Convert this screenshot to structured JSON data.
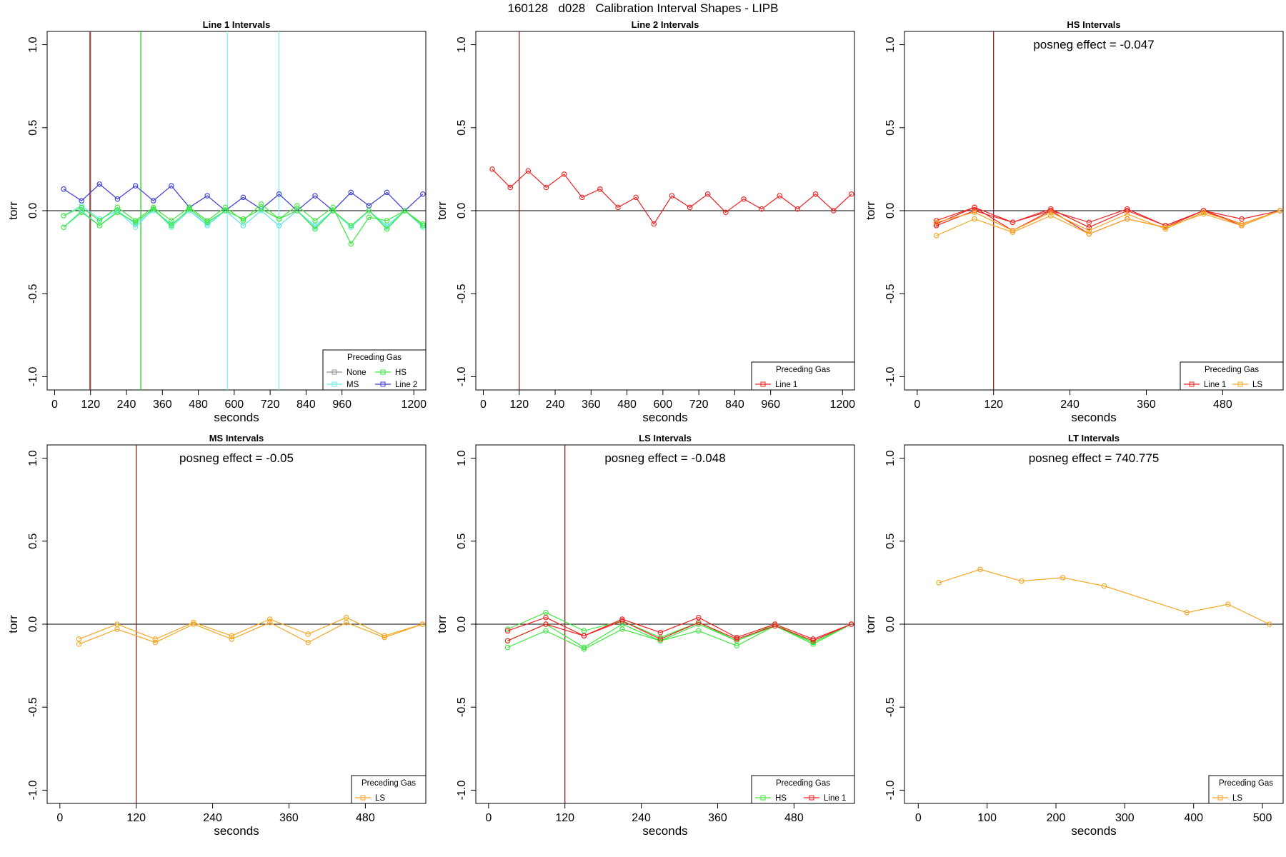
{
  "figure_title": "160128   d028   Calibration Interval Shapes - LIPB",
  "chart_data": [
    {
      "type": "line",
      "title": "Line 1 Intervals",
      "xlabel": "seconds",
      "ylabel": "torr",
      "xlim": [
        -25,
        1240
      ],
      "ylim": [
        -1.08,
        1.08
      ],
      "xticks": [
        0,
        120,
        240,
        360,
        480,
        600,
        720,
        840,
        960,
        1200
      ],
      "yticks": [
        1.0,
        0.5,
        0.0,
        -0.5,
        -1.0
      ],
      "ytick_labels": [
        "1.0",
        "0.5",
        "0.0",
        "-0.5",
        "-1.0"
      ],
      "hline": 0.0,
      "vlines": [
        {
          "x": 118,
          "color": "#7e1f6e"
        },
        {
          "x": 120,
          "color": "#a0522d"
        },
        {
          "x": 288,
          "color": "#22cc22"
        },
        {
          "x": 577,
          "color": "#7ff2f2"
        },
        {
          "x": 749,
          "color": "#7ff2f2"
        }
      ],
      "legend": {
        "title": "Preceding Gas",
        "position": "bottom-right",
        "columns": 2,
        "entries": [
          {
            "label": "None",
            "color": "#909090"
          },
          {
            "label": "HS",
            "color": "#3ee83e"
          },
          {
            "label": "MS",
            "color": "#66e8e8"
          },
          {
            "label": "Line 2",
            "color": "#3a3ad6"
          }
        ]
      },
      "series": [
        {
          "name": "Line 2",
          "color": "#3a3ad6",
          "x": [
            30,
            90,
            150,
            210,
            270,
            330,
            390,
            450,
            510,
            570,
            630,
            690,
            750,
            810,
            870,
            930,
            990,
            1050,
            1110,
            1170,
            1230
          ],
          "y": [
            0.13,
            0.06,
            0.16,
            0.07,
            0.15,
            0.06,
            0.15,
            0.02,
            0.09,
            0.0,
            0.08,
            0.01,
            0.1,
            0.0,
            0.09,
            0.0,
            0.11,
            0.03,
            0.11,
            0.0,
            0.1
          ]
        },
        {
          "name": "MS",
          "color": "#66e8e8",
          "x": [
            30,
            90,
            150,
            210,
            270,
            330,
            390,
            450,
            510,
            570,
            630,
            690,
            750,
            810,
            870,
            930,
            990,
            1050,
            1110,
            1170,
            1230
          ],
          "y": [
            -0.03,
            0.03,
            -0.05,
            0.0,
            -0.1,
            0.01,
            -0.1,
            0.0,
            -0.08,
            0.0,
            -0.09,
            0.0,
            -0.09,
            0.0,
            -0.09,
            0.0,
            -0.1,
            0.0,
            -0.09,
            0.0,
            -0.09
          ]
        },
        {
          "name": "MS",
          "color": "#66e8e8",
          "x": [
            30,
            90,
            150,
            210,
            270,
            330,
            390,
            450,
            510,
            570,
            630,
            690,
            750,
            810,
            870,
            930,
            990,
            1050,
            1110,
            1170,
            1230
          ],
          "y": [
            -0.1,
            0.0,
            -0.09,
            0.0,
            -0.08,
            0.0,
            -0.08,
            0.0,
            -0.09,
            0.0,
            -0.09,
            0.0,
            -0.09,
            0.0,
            -0.1,
            0.0,
            -0.1,
            0.0,
            -0.1,
            0.0,
            -0.1
          ]
        },
        {
          "name": "HS",
          "color": "#3ee83e",
          "x": [
            30,
            90,
            150,
            210,
            270,
            330,
            390,
            450,
            510,
            570,
            630,
            690,
            750,
            810,
            870,
            930,
            990,
            1050,
            1110,
            1170,
            1230
          ],
          "y": [
            -0.03,
            0.02,
            -0.06,
            0.02,
            -0.06,
            0.02,
            -0.06,
            0.02,
            -0.06,
            0.02,
            -0.06,
            0.04,
            -0.05,
            0.03,
            -0.06,
            0.02,
            -0.2,
            -0.04,
            -0.06,
            0.0,
            -0.08
          ]
        },
        {
          "name": "HS",
          "color": "#3ee83e",
          "x": [
            30,
            90,
            150,
            210,
            270,
            330,
            390,
            450,
            510,
            570,
            630,
            690,
            750,
            810,
            870,
            930,
            990,
            1050,
            1110,
            1170,
            1230
          ],
          "y": [
            -0.1,
            -0.01,
            -0.09,
            -0.01,
            -0.07,
            0.01,
            -0.09,
            0.01,
            -0.07,
            0.0,
            -0.05,
            0.01,
            -0.05,
            0.0,
            -0.11,
            0.0,
            -0.09,
            0.0,
            -0.11,
            0.0,
            -0.09
          ]
        }
      ]
    },
    {
      "type": "line",
      "title": "Line 2 Intervals",
      "xlabel": "seconds",
      "ylabel": "torr",
      "xlim": [
        -25,
        1240
      ],
      "ylim": [
        -1.08,
        1.08
      ],
      "xticks": [
        0,
        120,
        240,
        360,
        480,
        600,
        720,
        840,
        960,
        1200
      ],
      "yticks": [
        1.0,
        0.5,
        0.0,
        -0.5,
        -1.0
      ],
      "ytick_labels": [
        "1.0",
        "0.5",
        "0.0",
        "-0.5",
        "-1.0"
      ],
      "hline": 0.0,
      "vlines": [
        {
          "x": 120,
          "color": "#8b2323"
        }
      ],
      "legend": {
        "title": "Preceding Gas",
        "position": "bottom-right",
        "columns": 1,
        "entries": [
          {
            "label": "Line 1",
            "color": "#ee2222"
          }
        ]
      },
      "series": [
        {
          "name": "Line 1",
          "color": "#ee2222",
          "x": [
            30,
            90,
            150,
            210,
            270,
            330,
            390,
            450,
            510,
            570,
            630,
            690,
            750,
            810,
            870,
            930,
            990,
            1050,
            1110,
            1170,
            1230
          ],
          "y": [
            0.25,
            0.14,
            0.24,
            0.14,
            0.22,
            0.08,
            0.13,
            0.02,
            0.08,
            -0.08,
            0.09,
            0.02,
            0.1,
            -0.01,
            0.07,
            0.01,
            0.09,
            0.01,
            0.1,
            0.0,
            0.1
          ]
        }
      ]
    },
    {
      "type": "line",
      "title": "HS Intervals",
      "annotation": "posneg effect = -0.047",
      "xlabel": "seconds",
      "ylabel": "torr",
      "xlim": [
        -20,
        575
      ],
      "ylim": [
        -1.08,
        1.08
      ],
      "xticks": [
        0,
        120,
        240,
        360,
        480
      ],
      "yticks": [
        1.0,
        0.5,
        0.0,
        -0.5,
        -1.0
      ],
      "ytick_labels": [
        "1.0",
        "0.5",
        "0.0",
        "-0.5",
        "-1.0"
      ],
      "hline": 0.0,
      "vlines": [
        {
          "x": 120,
          "color": "#8b2323"
        }
      ],
      "legend": {
        "title": "Preceding Gas",
        "position": "bottom-right",
        "columns": 2,
        "entries": [
          {
            "label": "Line 1",
            "color": "#ee2222"
          },
          {
            "label": "LS",
            "color": "#f5a623"
          }
        ]
      },
      "series": [
        {
          "name": "Line 1",
          "color": "#ee2222",
          "x": [
            30,
            90,
            150,
            210,
            270,
            330,
            390,
            450,
            510,
            570
          ],
          "y": [
            -0.06,
            0.02,
            -0.07,
            0.0,
            -0.07,
            0.01,
            -0.09,
            0.0,
            -0.05,
            0.0
          ]
        },
        {
          "name": "Line 1",
          "color": "#ee2222",
          "x": [
            30,
            90,
            150,
            210,
            270,
            330,
            390,
            450,
            510,
            570
          ],
          "y": [
            -0.08,
            0.02,
            -0.12,
            0.0,
            -0.14,
            -0.05,
            -0.1,
            0.0,
            -0.09,
            0.0
          ]
        },
        {
          "name": "Line 1",
          "color": "#ee2222",
          "x": [
            30,
            90,
            150,
            210,
            270,
            330,
            390,
            450,
            510,
            570
          ],
          "y": [
            -0.09,
            0.0,
            -0.07,
            0.01,
            -0.1,
            0.0,
            -0.09,
            0.0,
            -0.08,
            0.0
          ]
        },
        {
          "name": "LS",
          "color": "#f5a623",
          "x": [
            30,
            90,
            150,
            210,
            270,
            330,
            390,
            450,
            510,
            570
          ],
          "y": [
            -0.15,
            -0.05,
            -0.13,
            -0.03,
            -0.14,
            -0.05,
            -0.1,
            -0.02,
            -0.09,
            0.0
          ]
        },
        {
          "name": "LS",
          "color": "#f5a623",
          "x": [
            30,
            90,
            150,
            210,
            270,
            330,
            390,
            450,
            510,
            570
          ],
          "y": [
            -0.07,
            -0.01,
            -0.12,
            -0.01,
            -0.12,
            -0.02,
            -0.11,
            -0.01,
            -0.08,
            0.0
          ]
        }
      ]
    },
    {
      "type": "line",
      "title": "MS Intervals",
      "annotation": "posneg effect = -0.05",
      "xlabel": "seconds",
      "ylabel": "torr",
      "xlim": [
        -20,
        575
      ],
      "ylim": [
        -1.08,
        1.08
      ],
      "xticks": [
        0,
        120,
        240,
        360,
        480
      ],
      "yticks": [
        1.0,
        0.5,
        0.0,
        -0.5,
        -1.0
      ],
      "ytick_labels": [
        "1.0",
        "0.5",
        "0.0",
        "-0.5",
        "-1.0"
      ],
      "hline": 0.0,
      "vlines": [
        {
          "x": 120,
          "color": "#8b2323"
        }
      ],
      "legend": {
        "title": "Preceding Gas",
        "position": "bottom-right",
        "columns": 1,
        "entries": [
          {
            "label": "LS",
            "color": "#f5a623"
          }
        ]
      },
      "series": [
        {
          "name": "LS",
          "color": "#f5a623",
          "x": [
            30,
            90,
            150,
            210,
            270,
            330,
            390,
            450,
            510,
            570
          ],
          "y": [
            -0.09,
            0.0,
            -0.09,
            0.01,
            -0.07,
            0.03,
            -0.06,
            0.04,
            -0.07,
            0.0
          ]
        },
        {
          "name": "LS",
          "color": "#f5a623",
          "x": [
            30,
            90,
            150,
            210,
            270,
            330,
            390,
            450,
            510,
            570
          ],
          "y": [
            -0.12,
            -0.03,
            -0.11,
            0.0,
            -0.09,
            0.01,
            -0.11,
            0.01,
            -0.08,
            0.0
          ]
        }
      ]
    },
    {
      "type": "line",
      "title": "LS Intervals",
      "annotation": "posneg effect = -0.048",
      "xlabel": "seconds",
      "ylabel": "torr",
      "xlim": [
        -20,
        575
      ],
      "ylim": [
        -1.08,
        1.08
      ],
      "xticks": [
        0,
        120,
        240,
        360,
        480
      ],
      "yticks": [
        1.0,
        0.5,
        0.0,
        -0.5,
        -1.0
      ],
      "ytick_labels": [
        "1.0",
        "0.5",
        "0.0",
        "-0.5",
        "-1.0"
      ],
      "hline": 0.0,
      "vlines": [
        {
          "x": 120,
          "color": "#8b2323"
        }
      ],
      "legend": {
        "title": "Preceding Gas",
        "position": "bottom-right",
        "columns": 2,
        "entries": [
          {
            "label": "HS",
            "color": "#3ee83e"
          },
          {
            "label": "Line 1",
            "color": "#ee2222"
          }
        ]
      },
      "series": [
        {
          "name": "HS",
          "color": "#3ee83e",
          "x": [
            30,
            90,
            150,
            210,
            270,
            330,
            390,
            450,
            510,
            570
          ],
          "y": [
            -0.03,
            0.07,
            -0.04,
            0.02,
            -0.08,
            0.01,
            -0.1,
            0.0,
            -0.11,
            0.0
          ]
        },
        {
          "name": "HS",
          "color": "#3ee83e",
          "x": [
            30,
            90,
            150,
            210,
            270,
            330,
            390,
            450,
            510,
            570
          ],
          "y": [
            -0.14,
            -0.04,
            -0.15,
            -0.03,
            -0.1,
            -0.04,
            -0.13,
            -0.01,
            -0.12,
            0.0
          ]
        },
        {
          "name": "HS",
          "color": "#3ee83e",
          "x": [
            30,
            90,
            150,
            210,
            270,
            330,
            390,
            450,
            510,
            570
          ],
          "y": [
            -0.1,
            0.0,
            -0.14,
            0.0,
            -0.1,
            0.0,
            -0.1,
            -0.01,
            -0.11,
            0.0
          ]
        },
        {
          "name": "Line 1",
          "color": "#ee2222",
          "x": [
            30,
            90,
            150,
            210,
            270,
            330,
            390,
            450,
            510,
            570
          ],
          "y": [
            -0.04,
            0.04,
            -0.07,
            0.03,
            -0.05,
            0.04,
            -0.08,
            0.0,
            -0.09,
            0.0
          ]
        },
        {
          "name": "Line 1",
          "color": "#ee2222",
          "x": [
            30,
            90,
            150,
            210,
            270,
            330,
            390,
            450,
            510,
            570
          ],
          "y": [
            -0.1,
            0.0,
            -0.07,
            0.02,
            -0.09,
            0.01,
            -0.09,
            -0.01,
            -0.1,
            0.0
          ]
        }
      ]
    },
    {
      "type": "line",
      "title": "LT Intervals",
      "annotation": "posneg effect = 740.775",
      "xlabel": "seconds",
      "ylabel": "torr",
      "xlim": [
        -20,
        530
      ],
      "ylim": [
        -1.08,
        1.08
      ],
      "xticks": [
        0,
        100,
        200,
        300,
        400,
        500
      ],
      "yticks": [
        1.0,
        0.5,
        0.0,
        -0.5,
        -1.0
      ],
      "ytick_labels": [
        "1.0",
        "0.5",
        "0.0",
        "-0.5",
        "-1.0"
      ],
      "hline": 0.0,
      "vlines": [],
      "legend": {
        "title": "Preceding Gas",
        "position": "bottom-right",
        "columns": 1,
        "entries": [
          {
            "label": "LS",
            "color": "#f5a623"
          }
        ]
      },
      "series": [
        {
          "name": "LS",
          "color": "#f5a623",
          "x": [
            30,
            90,
            150,
            210,
            270,
            390,
            450,
            510
          ],
          "y": [
            0.25,
            0.33,
            0.26,
            0.28,
            0.23,
            0.07,
            0.12,
            0.0
          ]
        }
      ]
    }
  ]
}
